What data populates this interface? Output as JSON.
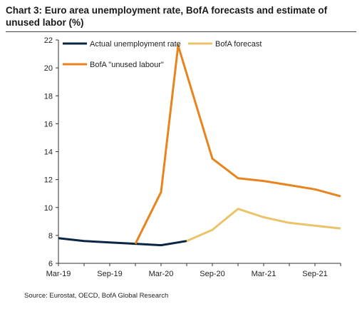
{
  "chart_data": {
    "type": "line",
    "title": "Chart 3: Euro area unemployment rate, BofA forecasts and estimate of unused labor (%)",
    "source": "Source: Eurostat, OECD, BofA Global Research",
    "x_tick_labels": [
      "Mar-19",
      "Sep-19",
      "Mar-20",
      "Sep-20",
      "Mar-21",
      "Sep-21"
    ],
    "y_tick_labels": [
      "6",
      "8",
      "10",
      "12",
      "14",
      "16",
      "18",
      "20",
      "22"
    ],
    "ylim": [
      6,
      22
    ],
    "xlim": [
      "2019-03",
      "2021-12"
    ],
    "grid": false,
    "legend": "top-left",
    "series": [
      {
        "name": "Actual unemployment rate",
        "color": "#0b2545",
        "x": [
          "2019-03",
          "2019-06",
          "2019-09",
          "2019-12",
          "2020-03",
          "2020-06"
        ],
        "values": [
          7.8,
          7.6,
          7.5,
          7.4,
          7.3,
          7.6
        ]
      },
      {
        "name": "BofA forecast",
        "color": "#e9c46a",
        "x": [
          "2020-06",
          "2020-09",
          "2020-12",
          "2021-03",
          "2021-06",
          "2021-09",
          "2021-12"
        ],
        "values": [
          7.6,
          8.4,
          9.9,
          9.3,
          8.9,
          8.7,
          8.5
        ]
      },
      {
        "name": "BofA \"unused labour\"",
        "color": "#e8831e",
        "x": [
          "2019-12",
          "2020-03",
          "2020-05",
          "2020-09",
          "2020-12",
          "2021-03",
          "2021-06",
          "2021-09",
          "2021-12"
        ],
        "values": [
          7.4,
          11.1,
          21.6,
          13.5,
          12.1,
          11.9,
          11.6,
          11.3,
          10.8
        ]
      }
    ]
  }
}
